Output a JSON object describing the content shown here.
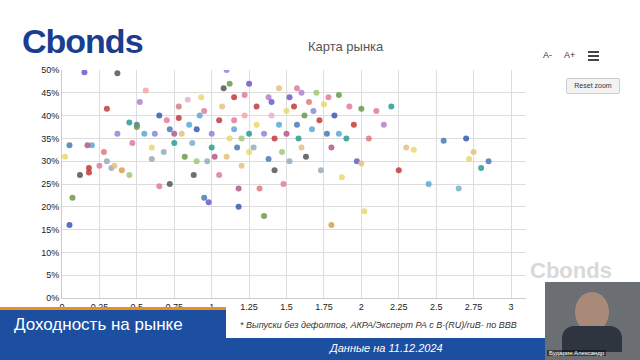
{
  "chart_data": {
    "type": "scatter",
    "title": "Карта рынка",
    "marker": "circle",
    "grid": true,
    "x": [
      0.15,
      0.37,
      0.05,
      0.02,
      0.07,
      0.05,
      0.12,
      0.18,
      0.18,
      0.2,
      0.17,
      0.25,
      0.3,
      0.28,
      0.33,
      0.35,
      0.4,
      0.37,
      0.3,
      0.45,
      0.5,
      0.5,
      0.45,
      0.47,
      0.52,
      0.56,
      0.55,
      0.6,
      0.62,
      0.65,
      0.68,
      0.7,
      0.72,
      0.72,
      0.75,
      0.75,
      0.78,
      0.78,
      0.8,
      0.82,
      0.84,
      0.85,
      0.87,
      0.88,
      0.9,
      0.9,
      0.93,
      0.95,
      0.95,
      0.97,
      0.98,
      1.0,
      1.0,
      1.02,
      1.05,
      1.07,
      1.08,
      1.1,
      1.12,
      1.12,
      1.15,
      1.15,
      1.17,
      1.18,
      1.18,
      1.2,
      1.2,
      1.22,
      1.22,
      1.25,
      1.25,
      1.28,
      1.3,
      1.3,
      1.32,
      1.35,
      1.35,
      1.38,
      1.38,
      1.4,
      1.42,
      1.42,
      1.45,
      1.45,
      1.47,
      1.48,
      1.5,
      1.5,
      1.52,
      1.52,
      1.55,
      1.57,
      1.57,
      1.58,
      1.6,
      1.6,
      1.62,
      1.63,
      1.65,
      1.67,
      1.68,
      1.7,
      1.72,
      1.73,
      1.75,
      1.77,
      1.78,
      1.8,
      1.82,
      1.85,
      1.85,
      1.87,
      1.9,
      1.92,
      1.95,
      1.97,
      2.0,
      2.0,
      2.02,
      2.05,
      2.1,
      2.15,
      2.2,
      2.25,
      2.3,
      2.35,
      2.45,
      2.55,
      2.65,
      2.7,
      2.72,
      2.75,
      2.8,
      2.85,
      1.15,
      1.05,
      0.6,
      0.65,
      1.4,
      1.25,
      0.92,
      1.8,
      1.1
    ],
    "values": [
      49.5,
      49.3,
      33.5,
      31,
      22,
      16,
      27,
      27.5,
      28.5,
      33.5,
      33.5,
      29,
      30,
      32,
      28.5,
      29,
      28,
      36,
      41.5,
      38.5,
      38,
      37.5,
      27,
      34,
      43,
      45.5,
      36,
      33,
      36,
      40,
      32,
      39,
      25,
      37,
      34,
      36,
      39.5,
      42,
      36,
      31,
      43.5,
      38,
      34,
      27,
      30,
      37,
      44,
      41,
      22,
      30,
      21,
      36,
      33,
      31,
      39,
      42,
      46,
      50,
      47,
      35,
      37,
      39,
      33,
      20,
      24,
      29,
      35,
      44.5,
      40,
      47,
      36,
      33,
      42,
      38,
      24,
      18,
      36,
      44,
      30.5,
      40,
      35,
      28,
      38,
      46,
      32,
      25,
      41,
      36,
      44,
      30,
      42,
      46,
      38,
      35,
      45,
      33,
      40,
      31,
      43,
      37,
      41,
      45,
      39,
      28,
      42.5,
      36,
      44,
      33,
      40,
      44.5,
      36,
      26.5,
      35,
      42,
      38,
      30,
      41.5,
      29.5,
      19,
      35,
      41,
      38,
      42,
      28,
      33,
      32.5,
      25,
      34.5,
      24,
      35,
      30.5,
      32,
      28.5,
      30,
      44,
      27,
      30.5,
      24.5,
      43,
      32,
      40,
      16,
      31
    ],
    "colors": [
      "#6a5acd",
      "#555555",
      "#4a7ab5",
      "#e8d870",
      "#6a9a4a",
      "#3a5ab5",
      "#555555",
      "#c23b3b",
      "#c23b3b",
      "#5aa9d6",
      "#b05a8a",
      "#e07aa0",
      "#99aabb",
      "#e07a7a",
      "#99aabb",
      "#e8c080",
      "#d4a050",
      "#8a8ad6",
      "#c23b3b",
      "#2a9d8f",
      "#4a7ab5",
      "#6a9a4a",
      "#a0c878",
      "#e07aa0",
      "#b080d0",
      "#f4a6a6",
      "#5aa9d6",
      "#e8d870",
      "#8a8ad6",
      "#3a5ab5",
      "#99aabb",
      "#e07aa0",
      "#555555",
      "#4a7ab5",
      "#2a9d8f",
      "#b05a8a",
      "#c23b3b",
      "#d48080",
      "#e8c080",
      "#6a9a4a",
      "#e8b0d0",
      "#5aa9d6",
      "#7ab0c8",
      "#555555",
      "#a0c878",
      "#3a5ab5",
      "#e8d870",
      "#e07aa0",
      "#4a7ab5",
      "#99aabb",
      "#6a5acd",
      "#8a8ad6",
      "#2a9d8f",
      "#b05a8a",
      "#c23b3b",
      "#e8c080",
      "#555555",
      "#8a8ad6",
      "#6a9a4a",
      "#e8d870",
      "#5aa9d6",
      "#e07aa0",
      "#4a7ab5",
      "#3a5ab5",
      "#b05a8a",
      "#e8c080",
      "#a0c878",
      "#e07aa0",
      "#f4a6a6",
      "#6a5acd",
      "#2a9d8f",
      "#99aabb",
      "#c23b3b",
      "#e8d870",
      "#e07a7a",
      "#6a9a4a",
      "#8a8ad6",
      "#b080d0",
      "#4a7ab5",
      "#e8b0d0",
      "#c23b3b",
      "#555555",
      "#5aa9d6",
      "#e8c080",
      "#a0c878",
      "#e07aa0",
      "#e8d870",
      "#b05a8a",
      "#6a5acd",
      "#99aabb",
      "#c23b3b",
      "#e07aa0",
      "#4a7ab5",
      "#2a9d8f",
      "#b080d0",
      "#e8c080",
      "#6a9a4a",
      "#555555",
      "#e07a7a",
      "#5aa9d6",
      "#8a8ad6",
      "#a0c878",
      "#c23b3b",
      "#99aabb",
      "#e8d870",
      "#4a7ab5",
      "#e07aa0",
      "#b05a8a",
      "#3a5ab5",
      "#6a9a4a",
      "#5aa9d6",
      "#e8d870",
      "#2a9d8f",
      "#e07aa0",
      "#c23b3b",
      "#6a5acd",
      "#6a9a4a",
      "#e8c080",
      "#e8d870",
      "#e07a7a",
      "#e07aa0",
      "#b080d0",
      "#2a9d8f",
      "#c23b3b",
      "#e8c080",
      "#e8d870",
      "#5aa9d6",
      "#4a7ab5",
      "#7ab0c8",
      "#3a5ab5",
      "#e8d870",
      "#e8c080",
      "#2a9d8f",
      "#4a7ab5",
      "#c23b3b",
      "#e07aa0",
      "#99aabb",
      "#e07aa0",
      "#6a5acd",
      "#e8d870",
      "#5aa9d6",
      "#d4a050",
      "#e8c080"
    ],
    "xlim": [
      0,
      3.1
    ],
    "xticks": [
      0,
      0.25,
      0.5,
      0.75,
      1,
      1.25,
      1.5,
      1.75,
      2,
      2.25,
      2.5,
      2.75,
      3
    ],
    "ylim": [
      0,
      50
    ],
    "yticks": [
      {
        "value": 0,
        "label": "0%"
      },
      {
        "value": 5,
        "label": "5%"
      },
      {
        "value": 10,
        "label": "10%"
      },
      {
        "value": 15,
        "label": "15%"
      },
      {
        "value": 20,
        "label": "20%"
      },
      {
        "value": 25,
        "label": "25%"
      },
      {
        "value": 30,
        "label": "30%"
      },
      {
        "value": 35,
        "label": "35%"
      },
      {
        "value": 40,
        "label": "40%"
      },
      {
        "value": 45,
        "label": "45%"
      },
      {
        "value": 50,
        "label": "50%"
      }
    ]
  },
  "slide": {
    "logo": "Cbonds",
    "buttons": [
      "A-",
      "A+",
      "Reset zoom"
    ],
    "watermark": "Cbonds",
    "caption": "Доходность на рынке",
    "footnote": "* Выпуски без дефолтов, АКРА/Эксперт РА с B-(RU)/ruB- по BBB",
    "date_note": "Данные на 11.12.2024",
    "speaker": "Бударин Александр"
  }
}
